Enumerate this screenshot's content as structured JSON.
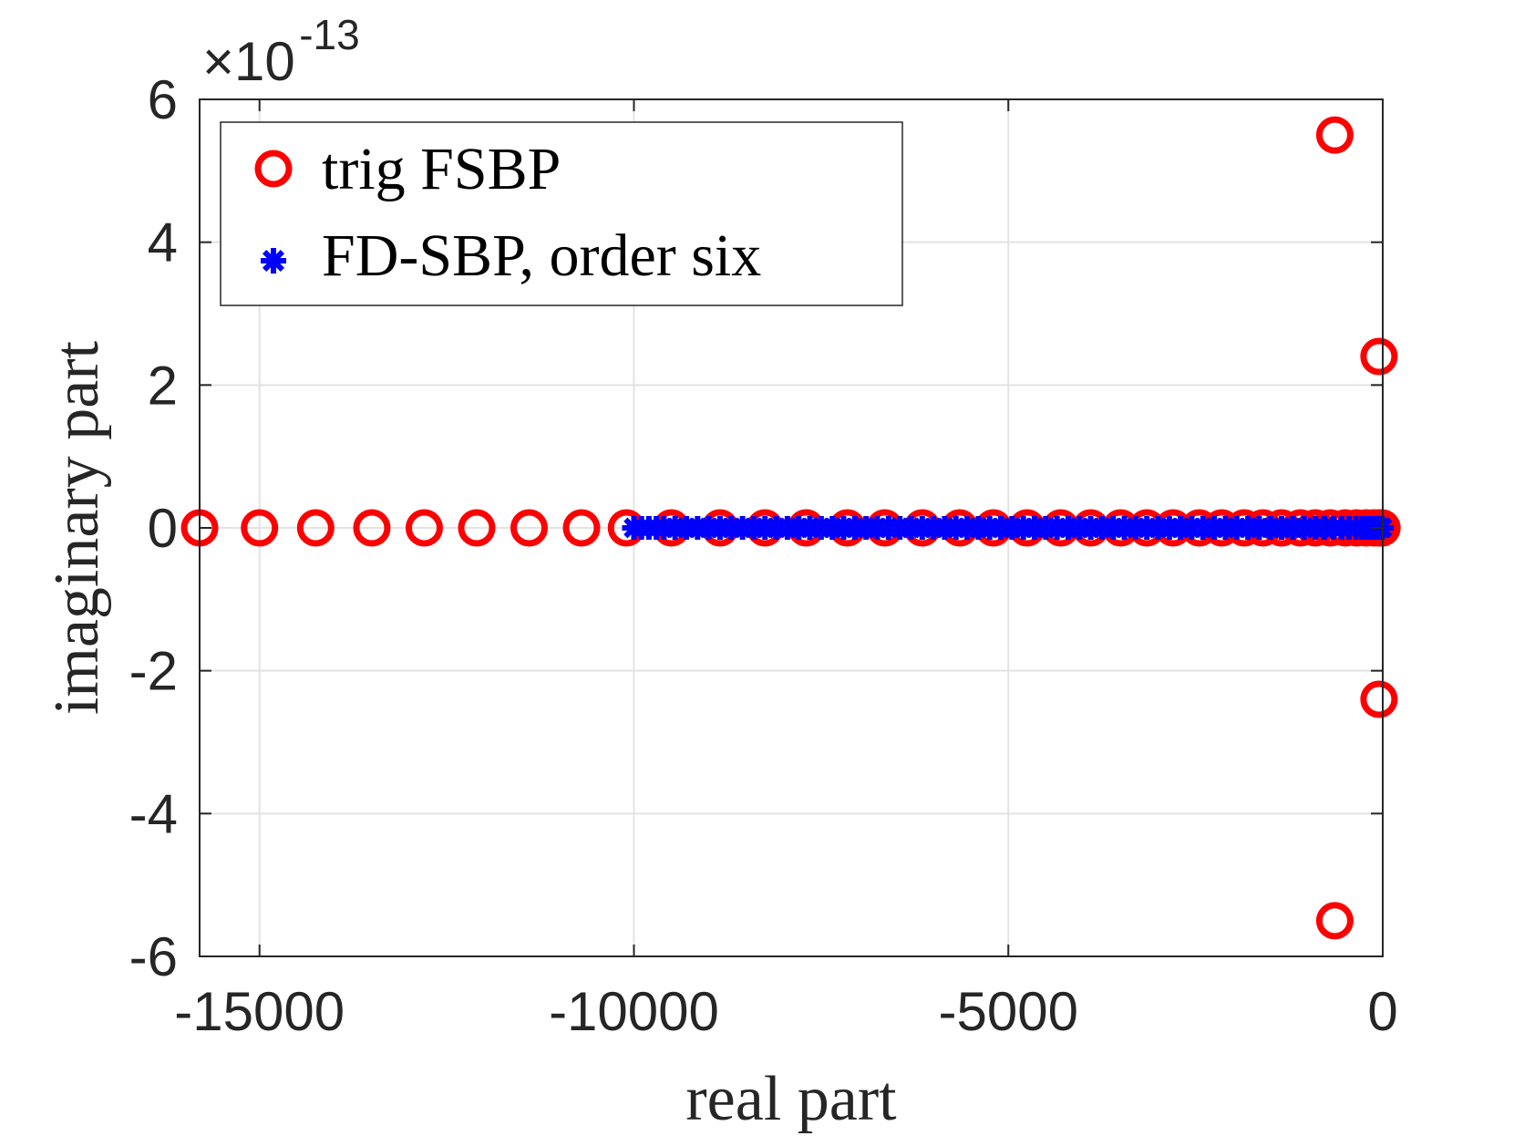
{
  "chart_data": {
    "type": "scatter",
    "title": "",
    "xlabel": "real part",
    "ylabel": "imaginary part",
    "xlim": [
      -15800,
      0
    ],
    "ylim": [
      -6e-13,
      6e-13
    ],
    "y_exponent_label": {
      "base": "×10",
      "exponent": "-13"
    },
    "xticks": [
      -15000,
      -10000,
      -5000,
      0
    ],
    "xtick_labels": [
      "-15000",
      "-10000",
      "-5000",
      "0"
    ],
    "yticks": [
      -6e-13,
      -4e-13,
      -2e-13,
      0,
      2e-13,
      4e-13,
      6e-13
    ],
    "ytick_labels": [
      "-6",
      "-4",
      "-2",
      "0",
      "2",
      "4",
      "6"
    ],
    "grid": true,
    "legend_position": "top-left",
    "series": [
      {
        "name": "trig FSBP",
        "marker": "circle",
        "color": "#ff0000",
        "points": [
          [
            -15800,
            0
          ],
          [
            -15000,
            0
          ],
          [
            -14250,
            0
          ],
          [
            -13500,
            0
          ],
          [
            -12800,
            0
          ],
          [
            -12100,
            0
          ],
          [
            -11400,
            0
          ],
          [
            -10700,
            0
          ],
          [
            -10100,
            0
          ],
          [
            -9500,
            0
          ],
          [
            -8850,
            0
          ],
          [
            -8250,
            0
          ],
          [
            -7700,
            0
          ],
          [
            -7150,
            0
          ],
          [
            -6650,
            0
          ],
          [
            -6150,
            0
          ],
          [
            -5650,
            0
          ],
          [
            -5200,
            0
          ],
          [
            -4750,
            0
          ],
          [
            -4300,
            0
          ],
          [
            -3900,
            0
          ],
          [
            -3500,
            0
          ],
          [
            -3150,
            0
          ],
          [
            -2800,
            0
          ],
          [
            -2450,
            0
          ],
          [
            -2150,
            0
          ],
          [
            -1850,
            0
          ],
          [
            -1600,
            0
          ],
          [
            -1350,
            0
          ],
          [
            -1100,
            0
          ],
          [
            -900,
            0
          ],
          [
            -700,
            0
          ],
          [
            -500,
            0
          ],
          [
            -350,
            0
          ],
          [
            -220,
            0
          ],
          [
            -120,
            0
          ],
          [
            -50,
            0
          ],
          [
            -10,
            0
          ],
          [
            -640,
            5.5e-13
          ],
          [
            -640,
            -5.5e-13
          ],
          [
            -50,
            2.4e-13
          ],
          [
            -50,
            -2.4e-13
          ]
        ]
      },
      {
        "name": "FD-SBP, order six",
        "marker": "asterisk",
        "color": "#0000ff",
        "points": [
          [
            -10000,
            0
          ],
          [
            -9900,
            0
          ],
          [
            -9800,
            0
          ],
          [
            -9700,
            0
          ],
          [
            -9600,
            0
          ],
          [
            -9450,
            0
          ],
          [
            -9300,
            0
          ],
          [
            -9150,
            0
          ],
          [
            -9000,
            0
          ],
          [
            -8850,
            0
          ],
          [
            -8700,
            0
          ],
          [
            -8550,
            0
          ],
          [
            -8400,
            0
          ],
          [
            -8250,
            0
          ],
          [
            -8100,
            0
          ],
          [
            -7950,
            0
          ],
          [
            -7800,
            0
          ],
          [
            -7650,
            0
          ],
          [
            -7500,
            0
          ],
          [
            -7350,
            0
          ],
          [
            -7200,
            0
          ],
          [
            -7050,
            0
          ],
          [
            -6900,
            0
          ],
          [
            -6750,
            0
          ],
          [
            -6600,
            0
          ],
          [
            -6450,
            0
          ],
          [
            -6300,
            0
          ],
          [
            -6150,
            0
          ],
          [
            -6000,
            0
          ],
          [
            -5850,
            0
          ],
          [
            -5700,
            0
          ],
          [
            -5550,
            0
          ],
          [
            -5400,
            0
          ],
          [
            -5250,
            0
          ],
          [
            -5100,
            0
          ],
          [
            -4950,
            0
          ],
          [
            -4800,
            0
          ],
          [
            -4650,
            0
          ],
          [
            -4500,
            0
          ],
          [
            -4350,
            0
          ],
          [
            -4200,
            0
          ],
          [
            -4050,
            0
          ],
          [
            -3900,
            0
          ],
          [
            -3750,
            0
          ],
          [
            -3600,
            0
          ],
          [
            -3450,
            0
          ],
          [
            -3300,
            0
          ],
          [
            -3150,
            0
          ],
          [
            -3000,
            0
          ],
          [
            -2850,
            0
          ],
          [
            -2700,
            0
          ],
          [
            -2550,
            0
          ],
          [
            -2400,
            0
          ],
          [
            -2250,
            0
          ],
          [
            -2100,
            0
          ],
          [
            -1950,
            0
          ],
          [
            -1800,
            0
          ],
          [
            -1650,
            0
          ],
          [
            -1500,
            0
          ],
          [
            -1350,
            0
          ],
          [
            -1200,
            0
          ],
          [
            -1050,
            0
          ],
          [
            -900,
            0
          ],
          [
            -780,
            0
          ],
          [
            -660,
            0
          ],
          [
            -550,
            0
          ],
          [
            -450,
            0
          ],
          [
            -360,
            0
          ],
          [
            -280,
            0
          ],
          [
            -210,
            0
          ],
          [
            -150,
            0
          ],
          [
            -100,
            0
          ],
          [
            -60,
            0
          ],
          [
            -30,
            0
          ],
          [
            -10,
            0
          ]
        ]
      }
    ]
  }
}
